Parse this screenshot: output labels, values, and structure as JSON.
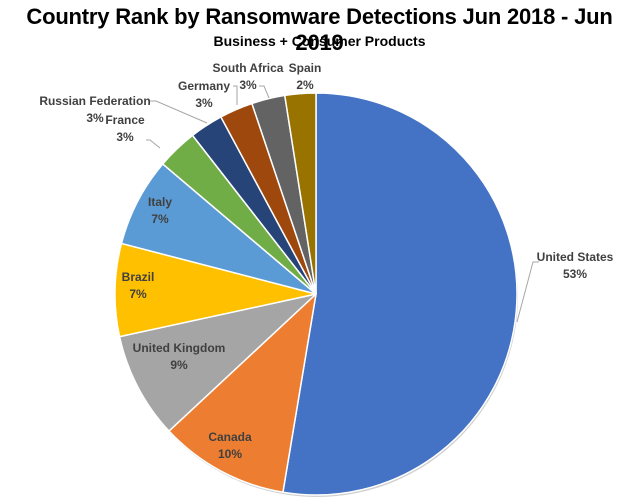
{
  "title": "Country Rank by Ransomware Detections Jun 2018 - Jun 2019",
  "subtitle": "Business + Consumer Products",
  "chart_data": {
    "type": "pie",
    "title": "Country Rank by Ransomware Detections Jun 2018 - Jun 2019",
    "subtitle": "Business + Consumer Products",
    "categories": [
      "United States",
      "Canada",
      "United Kingdom",
      "Brazil",
      "Italy",
      "France",
      "Russian Federation",
      "Germany",
      "South Africa",
      "Spain"
    ],
    "values": [
      53,
      10,
      9,
      7,
      7,
      3,
      3,
      3,
      3,
      2
    ],
    "value_format": "percent",
    "labels_note": "Displayed percentage labels are rounded and sum to 100+; slice geometry below is estimated from the image.",
    "render_fractions_estimated": [
      0.53,
      0.105,
      0.086,
      0.075,
      0.072,
      0.033,
      0.027,
      0.027,
      0.027,
      0.025
    ],
    "colors": [
      "#4472C4",
      "#ED7D31",
      "#A5A5A5",
      "#FFC000",
      "#5B9BD5",
      "#70AD47",
      "#264478",
      "#9E480E",
      "#636363",
      "#997300"
    ],
    "start_angle_deg": 0,
    "direction": "clockwise",
    "legend": "none",
    "data_labels": "category name and percentage",
    "xlabel": "",
    "ylabel": ""
  },
  "slices": [
    {
      "label": "United States",
      "pct": "53%"
    },
    {
      "label": "Canada",
      "pct": "10%"
    },
    {
      "label": "United Kingdom",
      "pct": "9%"
    },
    {
      "label": "Brazil",
      "pct": "7%"
    },
    {
      "label": "Italy",
      "pct": "7%"
    },
    {
      "label": "France",
      "pct": "3%"
    },
    {
      "label": "Russian Federation",
      "pct": "3%"
    },
    {
      "label": "Germany",
      "pct": "3%"
    },
    {
      "label": "South Africa",
      "pct": "3%"
    },
    {
      "label": "Spain",
      "pct": "2%"
    }
  ]
}
